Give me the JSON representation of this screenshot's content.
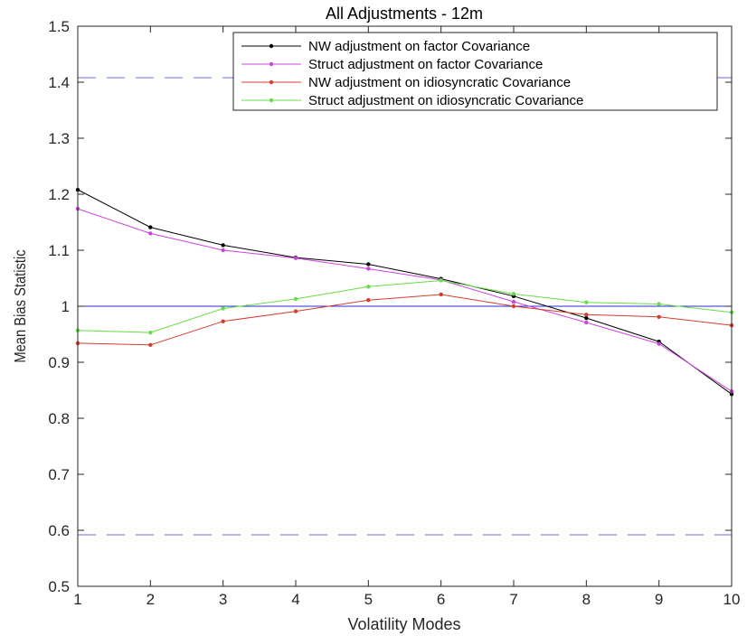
{
  "chart_data": {
    "type": "line",
    "title": "All Adjustments - 12m",
    "xlabel": "Volatility Modes",
    "ylabel": "Mean Bias Statistic",
    "xlim": [
      1,
      10
    ],
    "ylim": [
      0.5,
      1.5
    ],
    "xticks": [
      1,
      2,
      3,
      4,
      5,
      6,
      7,
      8,
      9,
      10
    ],
    "yticks": [
      0.5,
      0.6,
      0.7,
      0.8,
      0.9,
      1,
      1.1,
      1.2,
      1.3,
      1.4,
      1.5
    ],
    "x": [
      1,
      2,
      3,
      4,
      5,
      6,
      7,
      8,
      9,
      10
    ],
    "grid": false,
    "legend_position": "top-right",
    "series": [
      {
        "name": "NW adjustment on factor Covariance",
        "color": "#000000",
        "values": [
          1.208,
          1.141,
          1.109,
          1.087,
          1.075,
          1.049,
          1.018,
          0.979,
          0.937,
          0.843
        ]
      },
      {
        "name": "Struct adjustment on factor Covariance",
        "color": "#cc44dd",
        "values": [
          1.174,
          1.13,
          1.1,
          1.086,
          1.067,
          1.047,
          1.008,
          0.971,
          0.933,
          0.848
        ]
      },
      {
        "name": "NW adjustment on idiosyncratic Covariance",
        "color": "#d43c2c",
        "values": [
          0.934,
          0.931,
          0.973,
          0.991,
          1.011,
          1.021,
          1.0,
          0.985,
          0.981,
          0.966
        ]
      },
      {
        "name": "Struct adjustment on idiosyncratic Covariance",
        "color": "#66dd44",
        "values": [
          0.957,
          0.953,
          0.996,
          1.013,
          1.035,
          1.046,
          1.022,
          1.007,
          1.004,
          0.989
        ]
      }
    ],
    "reference_lines": [
      {
        "y": 1.0,
        "style": "solid",
        "color": "#2a2ad6"
      },
      {
        "y": 1.408,
        "style": "dashed",
        "color": "#6a6af0"
      },
      {
        "y": 0.592,
        "style": "dashed",
        "color": "#6a6af0"
      }
    ]
  }
}
